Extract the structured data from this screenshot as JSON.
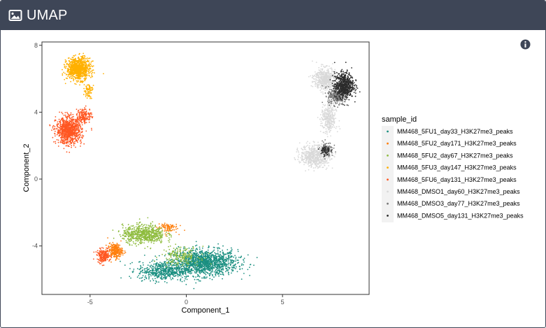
{
  "header": {
    "title": "UMAP",
    "icon": "image-icon"
  },
  "info_icon": "info-icon",
  "colors": {
    "header_bg": "#3e4657",
    "series": [
      "#1a8f80",
      "#ff7f0e",
      "#8fbc3f",
      "#ffb000",
      "#ff5722",
      "#d9d9d9",
      "#7a7a7a",
      "#2b2b2b"
    ]
  },
  "chart_data": {
    "type": "scatter",
    "xlabel": "Component_1",
    "ylabel": "Component_2",
    "xlim": [
      -7.5,
      9.5
    ],
    "ylim": [
      -6.9,
      8.2
    ],
    "xticks": [
      -5,
      0,
      5
    ],
    "yticks": [
      -4,
      0,
      4,
      8
    ],
    "grid": false,
    "legend_title": "sample_id",
    "legend_position": "right",
    "series": [
      {
        "name": "MM468_5FU1_day33_H3K27me3_peaks",
        "color": "#1a8f80",
        "clusters": [
          {
            "cx": 0.9,
            "cy": -5.0,
            "sx": 1.6,
            "sy": 0.7,
            "n": 1400
          },
          {
            "cx": -1.2,
            "cy": -5.5,
            "sx": 1.2,
            "sy": 0.5,
            "n": 500
          }
        ]
      },
      {
        "name": "MM468_5FU2_day171_H3K27me3_peaks",
        "color": "#ff7f0e",
        "clusters": [
          {
            "cx": -3.7,
            "cy": -4.3,
            "sx": 0.35,
            "sy": 0.4,
            "n": 250
          },
          {
            "cx": -1.0,
            "cy": -2.9,
            "sx": 0.5,
            "sy": 0.3,
            "n": 90
          }
        ]
      },
      {
        "name": "MM468_5FU2_day67_H3K27me3_peaks",
        "color": "#8fbc3f",
        "clusters": [
          {
            "cx": -2.2,
            "cy": -3.3,
            "sx": 1.0,
            "sy": 0.5,
            "n": 650
          },
          {
            "cx": -0.3,
            "cy": -4.6,
            "sx": 0.9,
            "sy": 0.5,
            "n": 180
          }
        ]
      },
      {
        "name": "MM468_5FU3_day147_H3K27me3_peaks",
        "color": "#ffb000",
        "clusters": [
          {
            "cx": -5.6,
            "cy": 6.6,
            "sx": 0.55,
            "sy": 0.6,
            "n": 900
          },
          {
            "cx": -5.1,
            "cy": 5.3,
            "sx": 0.2,
            "sy": 0.4,
            "n": 80
          }
        ]
      },
      {
        "name": "MM468_5FU6_day131_H3K27me3_peaks",
        "color": "#ff5722",
        "clusters": [
          {
            "cx": -6.1,
            "cy": 2.9,
            "sx": 0.6,
            "sy": 0.7,
            "n": 950
          },
          {
            "cx": -5.3,
            "cy": 3.8,
            "sx": 0.35,
            "sy": 0.4,
            "n": 160
          },
          {
            "cx": -4.3,
            "cy": -4.6,
            "sx": 0.3,
            "sy": 0.35,
            "n": 200
          }
        ]
      },
      {
        "name": "MM468_DMSO1_day60_H3K27me3_peaks",
        "color": "#d9d9d9",
        "clusters": [
          {
            "cx": 7.2,
            "cy": 6.0,
            "sx": 0.5,
            "sy": 0.6,
            "n": 500
          },
          {
            "cx": 6.7,
            "cy": 1.4,
            "sx": 0.7,
            "sy": 0.6,
            "n": 600
          },
          {
            "cx": 7.4,
            "cy": 3.6,
            "sx": 0.35,
            "sy": 0.8,
            "n": 300
          }
        ]
      },
      {
        "name": "MM468_DMSO3_day77_H3K27me3_peaks",
        "color": "#7a7a7a",
        "clusters": [
          {
            "cx": 7.8,
            "cy": 5.0,
            "sx": 0.4,
            "sy": 0.5,
            "n": 300
          },
          {
            "cx": 7.3,
            "cy": 1.8,
            "sx": 0.3,
            "sy": 0.4,
            "n": 100
          }
        ]
      },
      {
        "name": "MM468_DMSO5_day131_H3K27me3_peaks",
        "color": "#2b2b2b",
        "clusters": [
          {
            "cx": 8.2,
            "cy": 5.6,
            "sx": 0.45,
            "sy": 0.7,
            "n": 650
          },
          {
            "cx": 7.2,
            "cy": 1.7,
            "sx": 0.25,
            "sy": 0.3,
            "n": 60
          }
        ]
      }
    ]
  }
}
